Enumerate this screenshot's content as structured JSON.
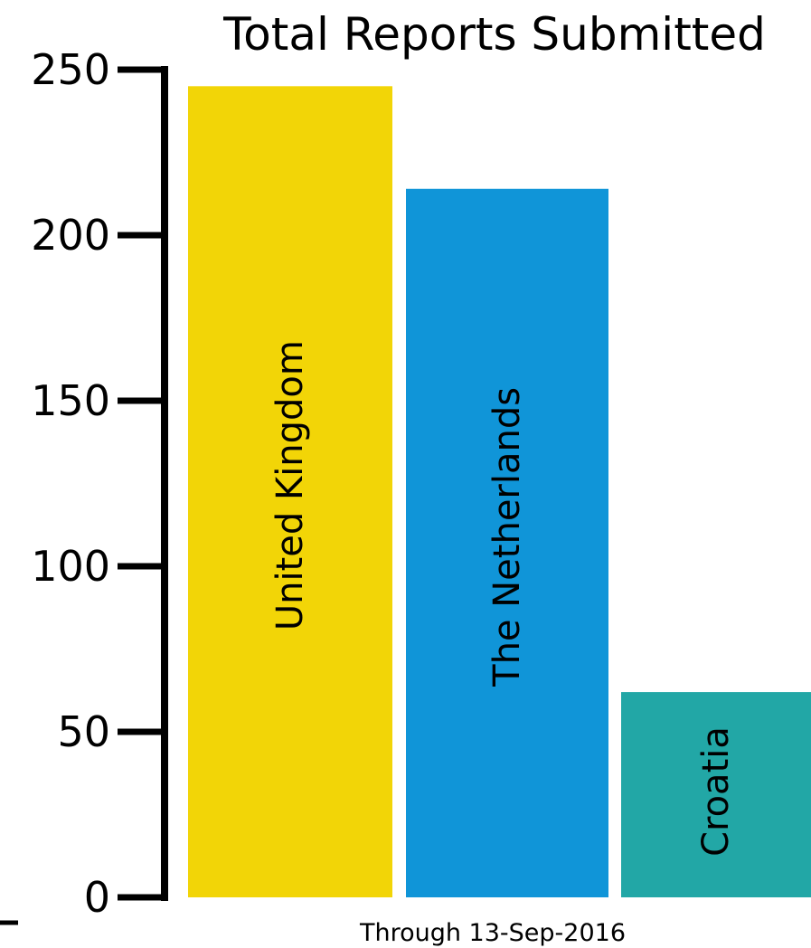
{
  "chart_data": {
    "type": "bar",
    "title": "Total Reports Submitted",
    "subtitle": "Through 13-Sep-2016",
    "categories": [
      "United Kingdom",
      "The Netherlands",
      "Croatia"
    ],
    "values": [
      245,
      214,
      62
    ],
    "colors": [
      "#f2d507",
      "#1095d8",
      "#22a7a6"
    ],
    "ylim": [
      0,
      250
    ],
    "yticks": [
      0,
      50,
      100,
      150,
      200,
      250
    ],
    "ytick_labels": [
      "0",
      "50",
      "100",
      "150",
      "200",
      "250"
    ],
    "xlabel": "",
    "ylabel": "",
    "grid": false,
    "legend": "none"
  }
}
